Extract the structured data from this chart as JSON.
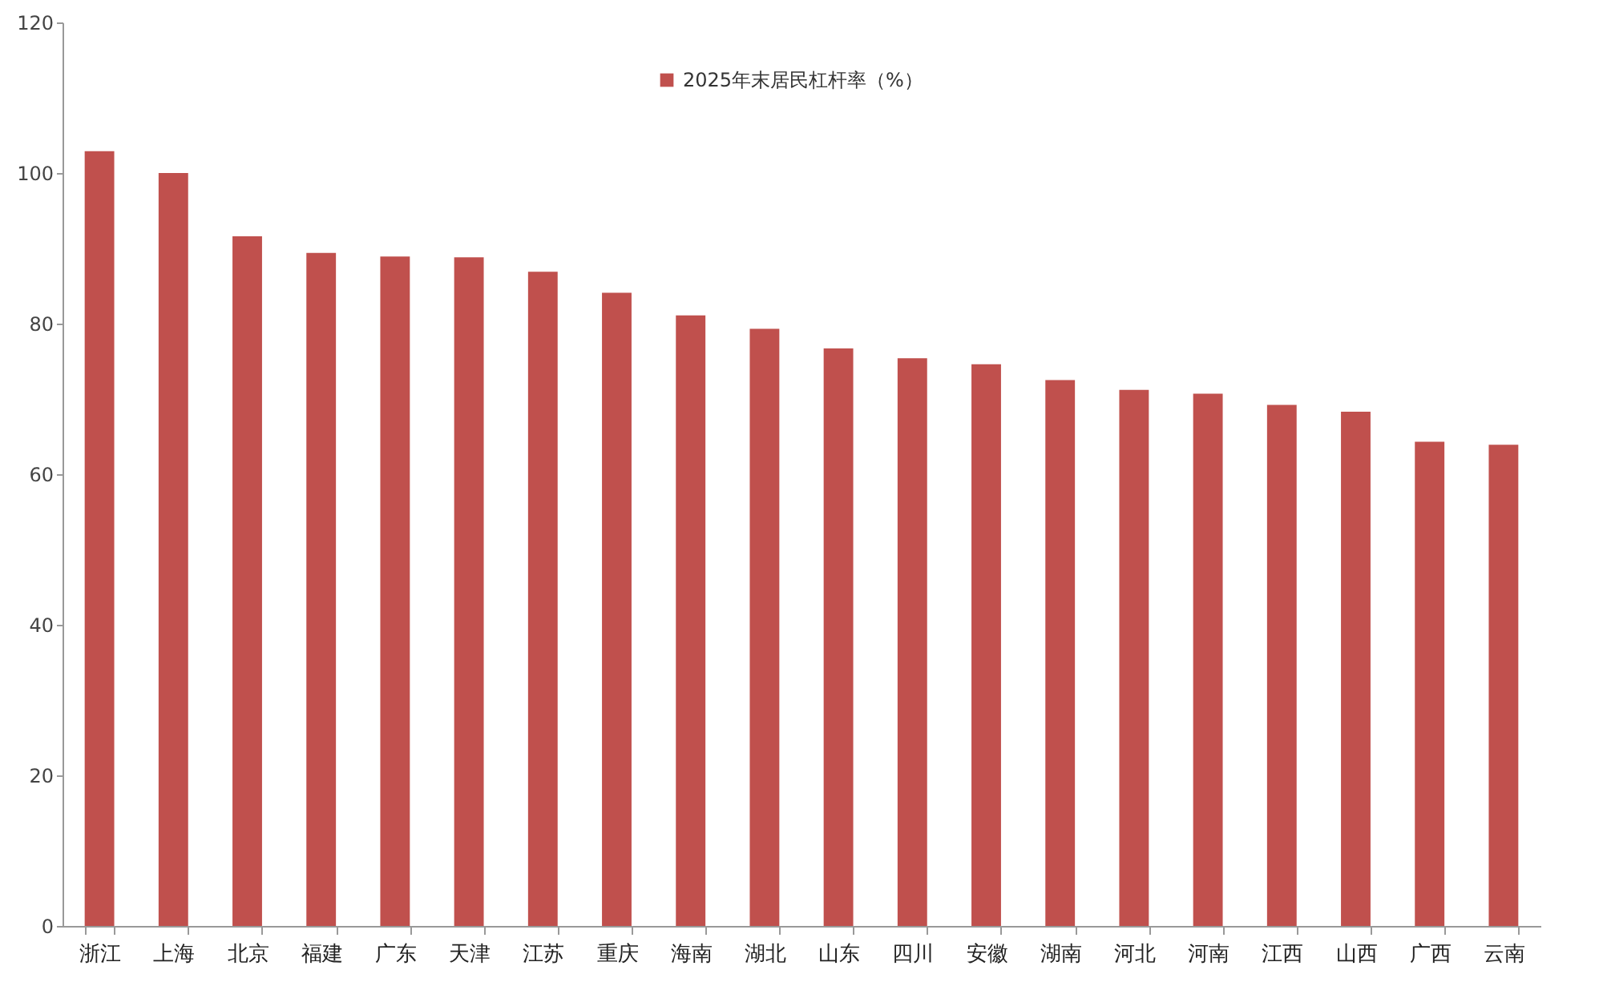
{
  "chart_data": {
    "type": "bar",
    "categories": [
      "浙江",
      "上海",
      "北京",
      "福建",
      "广东",
      "天津",
      "江苏",
      "重庆",
      "海南",
      "湖北",
      "山东",
      "四川",
      "安徽",
      "湖南",
      "河北",
      "河南",
      "江西",
      "山西",
      "广西",
      "云南"
    ],
    "series": [
      {
        "name": "2025年末居民杠杆率（%）",
        "color": "#c0504d",
        "values": [
          102.9,
          100,
          91.6,
          89.4,
          88.9,
          88.8,
          86.9,
          84.1,
          81.1,
          79.3,
          76.7,
          75.4,
          74.6,
          72.5,
          71.2,
          70.7,
          69.2,
          68.3,
          64.3,
          63.9
        ]
      }
    ],
    "ylim": [
      0,
      120
    ],
    "yticks": [
      0,
      20,
      40,
      60,
      80,
      100,
      120
    ],
    "grid": false,
    "legend": "top"
  }
}
